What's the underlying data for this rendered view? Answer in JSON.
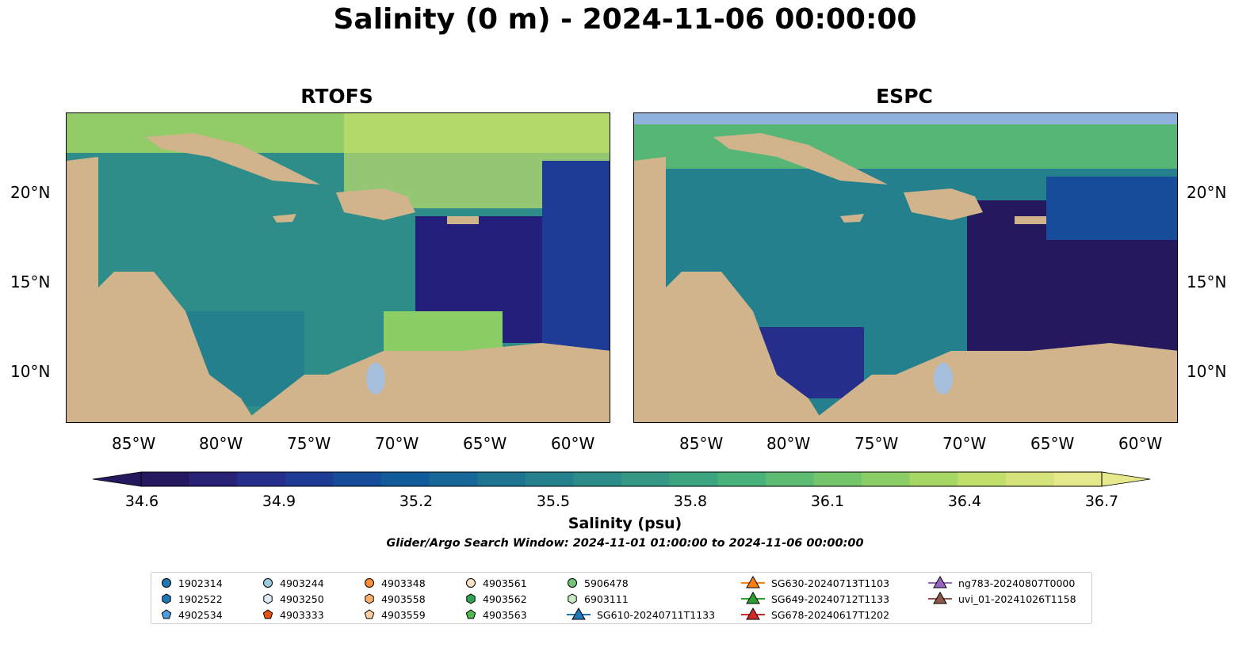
{
  "title": "Salinity (0 m) - 2024-11-06 00:00:00",
  "panels": [
    {
      "title": "RTOFS"
    },
    {
      "title": "ESPC"
    }
  ],
  "lon_ticks": [
    "85°W",
    "80°W",
    "75°W",
    "70°W",
    "65°W",
    "60°W"
  ],
  "lat_ticks": [
    "20°N",
    "15°N",
    "10°N"
  ],
  "colorbar": {
    "ticks": [
      "34.6",
      "34.9",
      "35.2",
      "35.5",
      "35.8",
      "36.1",
      "36.4",
      "36.7"
    ],
    "label": "Salinity (psu)",
    "colors": [
      "#26185f",
      "#282277",
      "#262e8b",
      "#1e3c96",
      "#164c9a",
      "#125b9b",
      "#176898",
      "#1e7592",
      "#25808d",
      "#2d8b89",
      "#349885",
      "#3ba580",
      "#49b17a",
      "#5dbb73",
      "#74c56c",
      "#8cce66",
      "#a6d664",
      "#c0de6a",
      "#d5e27a",
      "#e5e88b"
    ]
  },
  "search_window": "Glider/Argo Search Window: 2024-11-01 01:00:00 to 2024-11-06 00:00:00",
  "legend": {
    "items": [
      {
        "label": "1902314",
        "marker": "circle",
        "color": "#1f77b4"
      },
      {
        "label": "1902522",
        "marker": "hexagon",
        "color": "#1f77b4"
      },
      {
        "label": "4902534",
        "marker": "pentagon",
        "color": "#4e9be0"
      },
      {
        "label": "4903244",
        "marker": "circle",
        "color": "#9ecae1"
      },
      {
        "label": "4903250",
        "marker": "hexagon",
        "color": "#deebf7"
      },
      {
        "label": "4903333",
        "marker": "pentagon",
        "color": "#e6550d"
      },
      {
        "label": "4903348",
        "marker": "circle",
        "color": "#fd8d3c"
      },
      {
        "label": "4903558",
        "marker": "hexagon",
        "color": "#fdae6b"
      },
      {
        "label": "4903559",
        "marker": "pentagon",
        "color": "#fdd0a2"
      },
      {
        "label": "4903561",
        "marker": "circle",
        "color": "#fde0c5"
      },
      {
        "label": "4903562",
        "marker": "hexagon",
        "color": "#31a354"
      },
      {
        "label": "4903563",
        "marker": "pentagon",
        "color": "#51b84d"
      },
      {
        "label": "5906478",
        "marker": "circle",
        "color": "#74c476"
      },
      {
        "label": "6903111",
        "marker": "hexagon",
        "color": "#c7e9c0"
      },
      {
        "label": "SG610-20240711T1133",
        "marker": "triangle",
        "color": "#1f77b4"
      },
      {
        "label": "SG630-20240713T1103",
        "marker": "triangle",
        "color": "#ff7f0e"
      },
      {
        "label": "SG649-20240712T1133",
        "marker": "triangle",
        "color": "#2ca02c"
      },
      {
        "label": "SG678-20240617T1202",
        "marker": "triangle",
        "color": "#d62728"
      },
      {
        "label": "ng783-20240807T0000",
        "marker": "triangle",
        "color": "#9467bd"
      },
      {
        "label": "uvi_01-20241026T1158",
        "marker": "triangle",
        "color": "#8c564b"
      }
    ]
  },
  "colors": {
    "land": "#d2b48c",
    "lake": "#a5bfdd",
    "river": "#a8b8d0",
    "deep_low": "#26185f",
    "espc_band": "#8fb1dd"
  }
}
